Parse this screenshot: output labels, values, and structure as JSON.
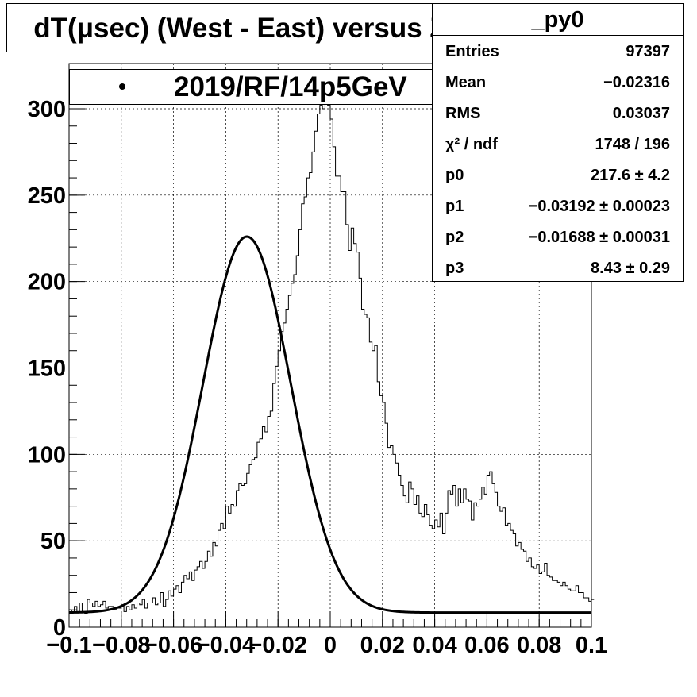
{
  "title": "dT(μsec) (West - East) versus Z",
  "legend": {
    "label": "2019/RF/14p5GeV"
  },
  "stats": {
    "name": "_py0",
    "rows": [
      {
        "key": "Entries",
        "value": "97397"
      },
      {
        "key": "Mean",
        "value": "−0.02316"
      },
      {
        "key": "RMS",
        "value": "0.03037"
      },
      {
        "key": "χ² / ndf",
        "value": "1748 / 196"
      },
      {
        "key": "p0",
        "value": "217.6 ± 4.2"
      },
      {
        "key": "p1",
        "value": "−0.03192 ± 0.00023"
      },
      {
        "key": "p2",
        "value": "−0.01688 ± 0.00031"
      },
      {
        "key": "p3",
        "value": "8.43 ± 0.29"
      }
    ]
  },
  "chart_data": {
    "type": "line",
    "xlim": [
      -0.1,
      0.1
    ],
    "ylim": [
      0,
      300
    ],
    "grid": true,
    "x_ticks": [
      {
        "v": -0.1,
        "label": "−0.1"
      },
      {
        "v": -0.08,
        "label": "−0.08"
      },
      {
        "v": -0.06,
        "label": "−0.06"
      },
      {
        "v": -0.04,
        "label": "−0.04"
      },
      {
        "v": -0.02,
        "label": "−0.02"
      },
      {
        "v": 0,
        "label": "0"
      },
      {
        "v": 0.02,
        "label": "0.02"
      },
      {
        "v": 0.04,
        "label": "0.04"
      },
      {
        "v": 0.06,
        "label": "0.06"
      },
      {
        "v": 0.08,
        "label": "0.08"
      },
      {
        "v": 0.1,
        "label": "0.1"
      }
    ],
    "y_ticks": [
      {
        "v": 0,
        "label": "0"
      },
      {
        "v": 50,
        "label": "50"
      },
      {
        "v": 100,
        "label": "100"
      },
      {
        "v": 150,
        "label": "150"
      },
      {
        "v": 200,
        "label": "200"
      },
      {
        "v": 250,
        "label": "250"
      },
      {
        "v": 300,
        "label": "300"
      }
    ],
    "series": [
      {
        "name": "2019/RF/14p5GeV",
        "style": "histogram",
        "bin_width": 0.001,
        "x_start": -0.1,
        "values": [
          10,
          9,
          12,
          9,
          14,
          9,
          8,
          16,
          14,
          12,
          15,
          12,
          13,
          15,
          11,
          12,
          12,
          10,
          11,
          11,
          13,
          9,
          12,
          10,
          13,
          11,
          14,
          13,
          16,
          11,
          14,
          14,
          17,
          13,
          14,
          20,
          12,
          16,
          21,
          18,
          22,
          24,
          20,
          26,
          30,
          28,
          32,
          27,
          33,
          35,
          38,
          34,
          38,
          44,
          41,
          49,
          47,
          56,
          60,
          57,
          70,
          66,
          71,
          70,
          79,
          83,
          82,
          83,
          89,
          94,
          97,
          98,
          107,
          109,
          116,
          113,
          122,
          125,
          141,
          151,
          160,
          171,
          176,
          184,
          192,
          199,
          204,
          215,
          230,
          245,
          249,
          260,
          263,
          275,
          287,
          297,
          302,
          300,
          310,
          302,
          294,
          278,
          261,
          261,
          252,
          252,
          233,
          218,
          231,
          222,
          217,
          202,
          184,
          181,
          179,
          165,
          160,
          163,
          142,
          134,
          130,
          118,
          104,
          105,
          100,
          95,
          88,
          82,
          76,
          72,
          84,
          80,
          71,
          76,
          66,
          64,
          71,
          65,
          59,
          57,
          62,
          58,
          66,
          54,
          66,
          79,
          77,
          82,
          70,
          80,
          72,
          80,
          74,
          73,
          62,
          72,
          70,
          74,
          81,
          77,
          88,
          90,
          83,
          78,
          70,
          67,
          69,
          59,
          60,
          56,
          54,
          47,
          49,
          45,
          44,
          38,
          40,
          35,
          34,
          36,
          31,
          32,
          37,
          30,
          29,
          27,
          27,
          26,
          24,
          26,
          24,
          22,
          21,
          21,
          24,
          20,
          20,
          17,
          17,
          15,
          16
        ]
      },
      {
        "name": "fit",
        "style": "curve",
        "function": "p0*exp(-0.5*((x-p1)/p2)^2)+p3",
        "p0": 217.6,
        "p1": -0.03192,
        "p2": -0.01688,
        "p3": 8.43
      }
    ]
  }
}
